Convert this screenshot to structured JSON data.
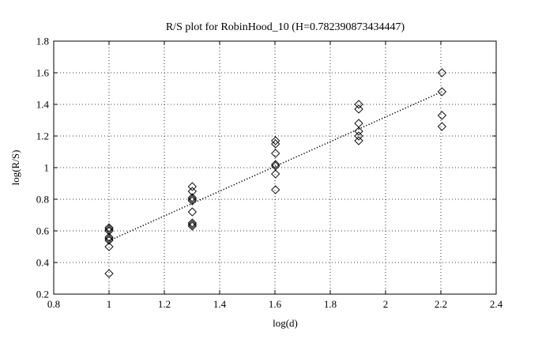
{
  "chart_data": {
    "type": "scatter",
    "title": "R/S plot for RobinHood_10 (H=0.782390873434447)",
    "xlabel": "log(d)",
    "ylabel": "log(R/S)",
    "xlim": [
      0.8,
      2.4
    ],
    "ylim": [
      0.2,
      1.8
    ],
    "xticks": [
      0.8,
      1,
      1.2,
      1.4,
      1.6,
      1.8,
      2,
      2.2,
      2.4
    ],
    "yticks": [
      0.2,
      0.4,
      0.6,
      0.8,
      1,
      1.2,
      1.4,
      1.6,
      1.8
    ],
    "xtick_labels": [
      "0.8",
      "1",
      "1.2",
      "1.4",
      "1.6",
      "1.8",
      "2",
      "2.2",
      "2.4"
    ],
    "ytick_labels": [
      "0.2",
      "0.4",
      "0.6",
      "0.8",
      "1",
      "1.2",
      "1.4",
      "1.6",
      "1.8"
    ],
    "grid": true,
    "marker": "diamond",
    "series": [
      {
        "points": [
          [
            1.0,
            0.62
          ],
          [
            1.0,
            0.61
          ],
          [
            1.0,
            0.6
          ],
          [
            1.0,
            0.56
          ],
          [
            1.0,
            0.55
          ],
          [
            1.0,
            0.54
          ],
          [
            1.0,
            0.5
          ],
          [
            1.0,
            0.33
          ],
          [
            1.301,
            0.88
          ],
          [
            1.301,
            0.85
          ],
          [
            1.301,
            0.81
          ],
          [
            1.301,
            0.8
          ],
          [
            1.301,
            0.79
          ],
          [
            1.301,
            0.72
          ],
          [
            1.301,
            0.65
          ],
          [
            1.301,
            0.64
          ],
          [
            1.301,
            0.63
          ],
          [
            1.602,
            1.17
          ],
          [
            1.602,
            1.15
          ],
          [
            1.602,
            1.09
          ],
          [
            1.602,
            1.02
          ],
          [
            1.602,
            1.01
          ],
          [
            1.602,
            0.96
          ],
          [
            1.602,
            0.86
          ],
          [
            1.903,
            1.4
          ],
          [
            1.903,
            1.37
          ],
          [
            1.903,
            1.28
          ],
          [
            1.903,
            1.23
          ],
          [
            1.903,
            1.2
          ],
          [
            1.903,
            1.17
          ],
          [
            2.204,
            1.6
          ],
          [
            2.204,
            1.48
          ],
          [
            2.204,
            1.33
          ],
          [
            2.204,
            1.26
          ]
        ]
      }
    ],
    "fit_line": {
      "style": "dotted",
      "x": [
        1.0,
        2.204
      ],
      "y": [
        0.538,
        1.48
      ]
    }
  }
}
